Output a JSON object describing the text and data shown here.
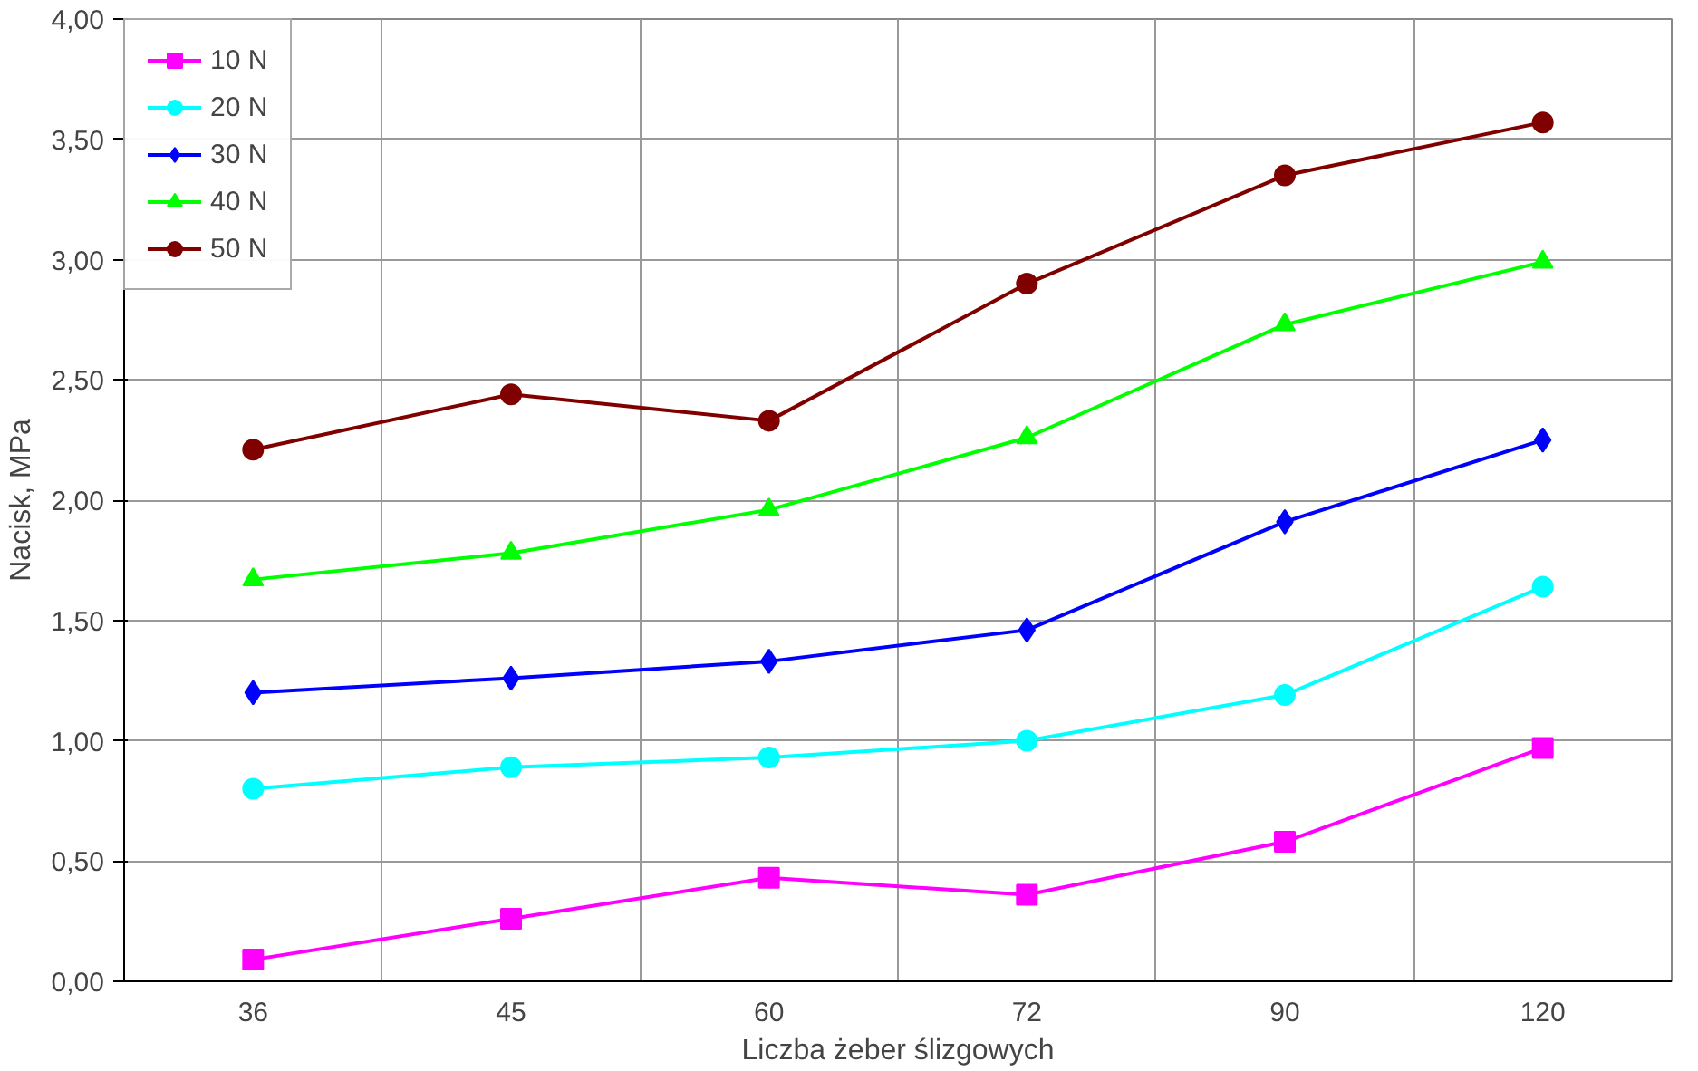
{
  "chart_data": {
    "type": "line",
    "xlabel": "Liczba żeber ślizgowych",
    "ylabel": "Nacisk, MPa",
    "categories": [
      "36",
      "45",
      "60",
      "72",
      "90",
      "120"
    ],
    "ylim": [
      0,
      4
    ],
    "yticks": [
      {
        "value": 0,
        "label": "0,00"
      },
      {
        "value": 0.5,
        "label": "0,50"
      },
      {
        "value": 1,
        "label": "1,00"
      },
      {
        "value": 1.5,
        "label": "1,50"
      },
      {
        "value": 2,
        "label": "2,00"
      },
      {
        "value": 2.5,
        "label": "2,50"
      },
      {
        "value": 3,
        "label": "3,00"
      },
      {
        "value": 3.5,
        "label": "3,50"
      },
      {
        "value": 4,
        "label": "4,00"
      }
    ],
    "grid": true,
    "legend": "top left",
    "line_style": "solid",
    "series": [
      {
        "name": "10 N",
        "color": "#ff00ff",
        "marker": "square",
        "values": [
          0.09,
          0.26,
          0.43,
          0.36,
          0.58,
          0.97
        ]
      },
      {
        "name": "20 N",
        "color": "#00ffff",
        "marker": "circle",
        "values": [
          0.8,
          0.89,
          0.93,
          1.0,
          1.19,
          1.64
        ]
      },
      {
        "name": "30 N",
        "color": "#0000ff",
        "marker": "diamond",
        "values": [
          1.2,
          1.26,
          1.33,
          1.46,
          1.91,
          2.25
        ]
      },
      {
        "name": "40 N",
        "color": "#00ff00",
        "marker": "triangle",
        "values": [
          1.67,
          1.78,
          1.96,
          2.26,
          2.73,
          2.99
        ]
      },
      {
        "name": "50 N",
        "color": "#800000",
        "marker": "circle",
        "values": [
          2.21,
          2.44,
          2.33,
          2.9,
          3.35,
          3.57
        ]
      }
    ]
  }
}
